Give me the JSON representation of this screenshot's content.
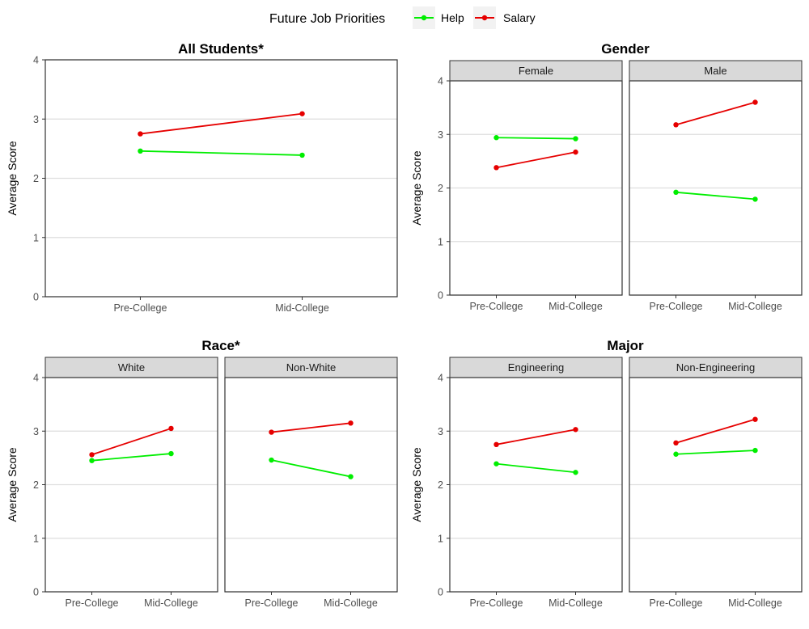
{
  "legend": {
    "title": "Future Job Priorities",
    "items": [
      {
        "label": "Help",
        "color": "#00ee00"
      },
      {
        "label": "Salary",
        "color": "#e60000"
      }
    ]
  },
  "chart_data": [
    {
      "type": "line",
      "title": "All Students*",
      "ylabel": "Average Score",
      "ylim": [
        0,
        4
      ],
      "yticks": [
        "0",
        "1",
        "2",
        "3",
        "4"
      ],
      "categories": [
        "Pre-College",
        "Mid-College"
      ],
      "panels": [
        {
          "strip": "",
          "series": [
            {
              "name": "Help",
              "values": [
                2.46,
                2.39
              ]
            },
            {
              "name": "Salary",
              "values": [
                2.75,
                3.09
              ]
            }
          ]
        }
      ]
    },
    {
      "type": "line",
      "title": "Gender",
      "ylabel": "Average Score",
      "ylim": [
        0,
        4
      ],
      "yticks": [
        "0",
        "1",
        "2",
        "3",
        "4"
      ],
      "categories": [
        "Pre-College",
        "Mid-College"
      ],
      "panels": [
        {
          "strip": "Female",
          "series": [
            {
              "name": "Help",
              "values": [
                2.94,
                2.92
              ]
            },
            {
              "name": "Salary",
              "values": [
                2.38,
                2.67
              ]
            }
          ]
        },
        {
          "strip": "Male",
          "series": [
            {
              "name": "Help",
              "values": [
                1.92,
                1.79
              ]
            },
            {
              "name": "Salary",
              "values": [
                3.18,
                3.6
              ]
            }
          ]
        }
      ]
    },
    {
      "type": "line",
      "title": "Race*",
      "ylabel": "Average Score",
      "ylim": [
        0,
        4
      ],
      "yticks": [
        "0",
        "1",
        "2",
        "3",
        "4"
      ],
      "categories": [
        "Pre-College",
        "Mid-College"
      ],
      "panels": [
        {
          "strip": "White",
          "series": [
            {
              "name": "Help",
              "values": [
                2.45,
                2.58
              ]
            },
            {
              "name": "Salary",
              "values": [
                2.56,
                3.05
              ]
            }
          ]
        },
        {
          "strip": "Non-White",
          "series": [
            {
              "name": "Help",
              "values": [
                2.46,
                2.15
              ]
            },
            {
              "name": "Salary",
              "values": [
                2.98,
                3.15
              ]
            }
          ]
        }
      ]
    },
    {
      "type": "line",
      "title": "Major",
      "ylabel": "Average Score",
      "ylim": [
        0,
        4
      ],
      "yticks": [
        "0",
        "1",
        "2",
        "3",
        "4"
      ],
      "categories": [
        "Pre-College",
        "Mid-College"
      ],
      "panels": [
        {
          "strip": "Engineering",
          "series": [
            {
              "name": "Help",
              "values": [
                2.39,
                2.23
              ]
            },
            {
              "name": "Salary",
              "values": [
                2.75,
                3.03
              ]
            }
          ]
        },
        {
          "strip": "Non-Engineering",
          "series": [
            {
              "name": "Help",
              "values": [
                2.57,
                2.64
              ]
            },
            {
              "name": "Salary",
              "values": [
                2.78,
                3.22
              ]
            }
          ]
        }
      ]
    }
  ]
}
